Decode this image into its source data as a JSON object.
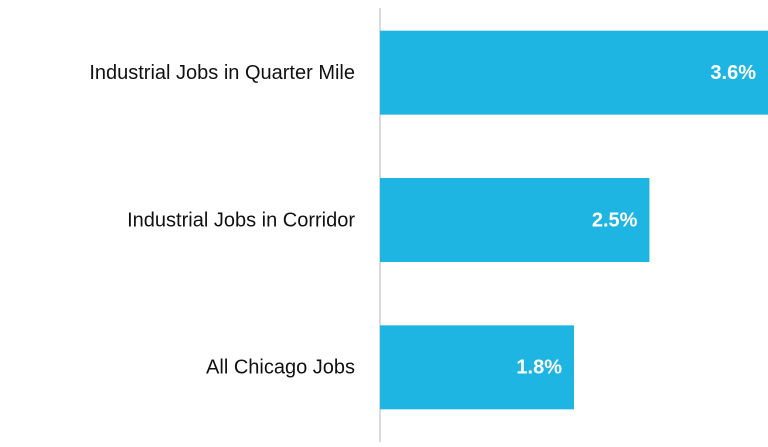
{
  "chart_data": {
    "type": "barh",
    "categories": [
      "Industrial Jobs in Quarter Mile",
      "Industrial Jobs in Corridor",
      "All Chicago Jobs"
    ],
    "values": [
      3.6,
      2.5,
      1.8
    ],
    "value_labels": [
      "3.6%",
      "2.5%",
      "1.8%"
    ],
    "color": "#1fb5e3",
    "xlim": [
      0,
      3.6
    ]
  }
}
